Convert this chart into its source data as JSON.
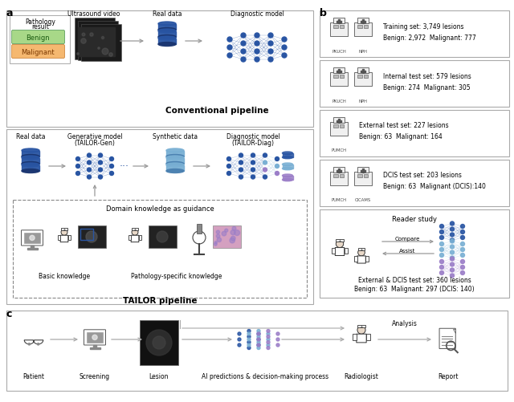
{
  "bg": "#ffffff",
  "blue": "#2955a3",
  "lblue": "#7ab0d4",
  "purple": "#9b7ec8",
  "gray": "#888888",
  "lgray": "#cccccc",
  "dkgray": "#444444",
  "green_fill": "#a8d888",
  "green_edge": "#60a060",
  "orange_fill": "#f5b870",
  "orange_edge": "#d08840",
  "panel_b": [
    {
      "t1": "Training set: 3,749 lesions",
      "t2": "Benign: 2,972  Malignant: 777",
      "icons": [
        "PKUCH",
        "NPH"
      ]
    },
    {
      "t1": "Internal test set: 579 lesions",
      "t2": "Benign: 274  Malignant: 305",
      "icons": [
        "PKUCH",
        "NPH"
      ]
    },
    {
      "t1": "External test set: 227 lesions",
      "t2": "Benign: 63  Malignant: 164",
      "icons": [
        "PUMCH"
      ]
    },
    {
      "t1": "DCIS test set: 203 lesions",
      "t2": "Benign: 63  Malignant (DCIS):140",
      "icons": [
        "PUMCH",
        "CICAMS"
      ]
    }
  ],
  "reader_t1": "External & DCIS test set: 360 lesions",
  "reader_t2": "Benign: 63  Malignant: 297 (DCIS: 140)"
}
